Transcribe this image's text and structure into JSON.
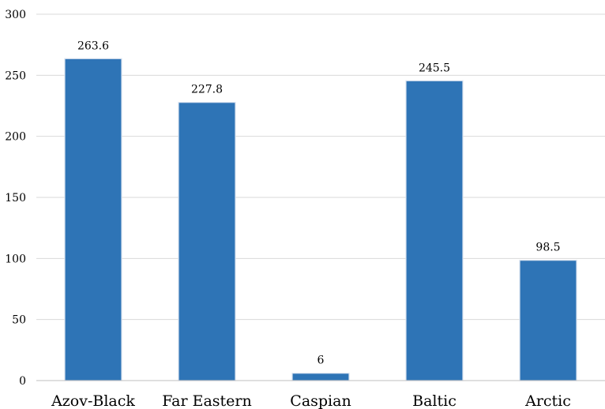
{
  "chart_data": {
    "type": "bar",
    "categories": [
      "Azov-Black",
      "Far Eastern",
      "Caspian",
      "Baltic",
      "Arctic"
    ],
    "values": [
      263.6,
      227.8,
      6,
      245.5,
      98.5
    ],
    "value_labels": [
      "263.6",
      "227.8",
      "6",
      "245.5",
      "98.5"
    ],
    "yticks": [
      0,
      50,
      100,
      150,
      200,
      250,
      300
    ],
    "ylim": [
      0,
      300
    ],
    "title": "",
    "xlabel": "",
    "ylabel": "",
    "grid": true,
    "legend": "none",
    "bar_color": "#2e74b6",
    "bar_edge_color": "#d9e2f0"
  }
}
